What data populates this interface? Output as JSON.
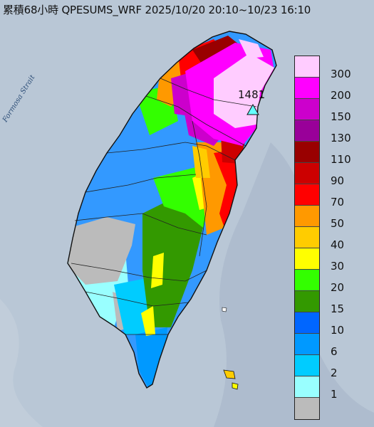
{
  "title": "累積68小時 QPESUMS_WRF 2025/10/20 20:10~10/23 16:10",
  "map_label": "Formosa Strait",
  "max_value": "1481",
  "legend": [
    {
      "label": "300",
      "color": "#ffccff"
    },
    {
      "label": "200",
      "color": "#ff00ff"
    },
    {
      "label": "150",
      "color": "#cc00cc"
    },
    {
      "label": "130",
      "color": "#990099"
    },
    {
      "label": "110",
      "color": "#990000"
    },
    {
      "label": "90",
      "color": "#cc0000"
    },
    {
      "label": "70",
      "color": "#ff0000"
    },
    {
      "label": "50",
      "color": "#ff9900"
    },
    {
      "label": "40",
      "color": "#ffcc00"
    },
    {
      "label": "30",
      "color": "#ffff00"
    },
    {
      "label": "20",
      "color": "#33ff00"
    },
    {
      "label": "15",
      "color": "#339900"
    },
    {
      "label": "10",
      "color": "#0066ff"
    },
    {
      "label": "6",
      "color": "#0099ff"
    },
    {
      "label": "2",
      "color": "#00ccff"
    },
    {
      "label": "1",
      "color": "#99ffff"
    },
    {
      "label": "",
      "color": "#bbbbbb"
    }
  ]
}
